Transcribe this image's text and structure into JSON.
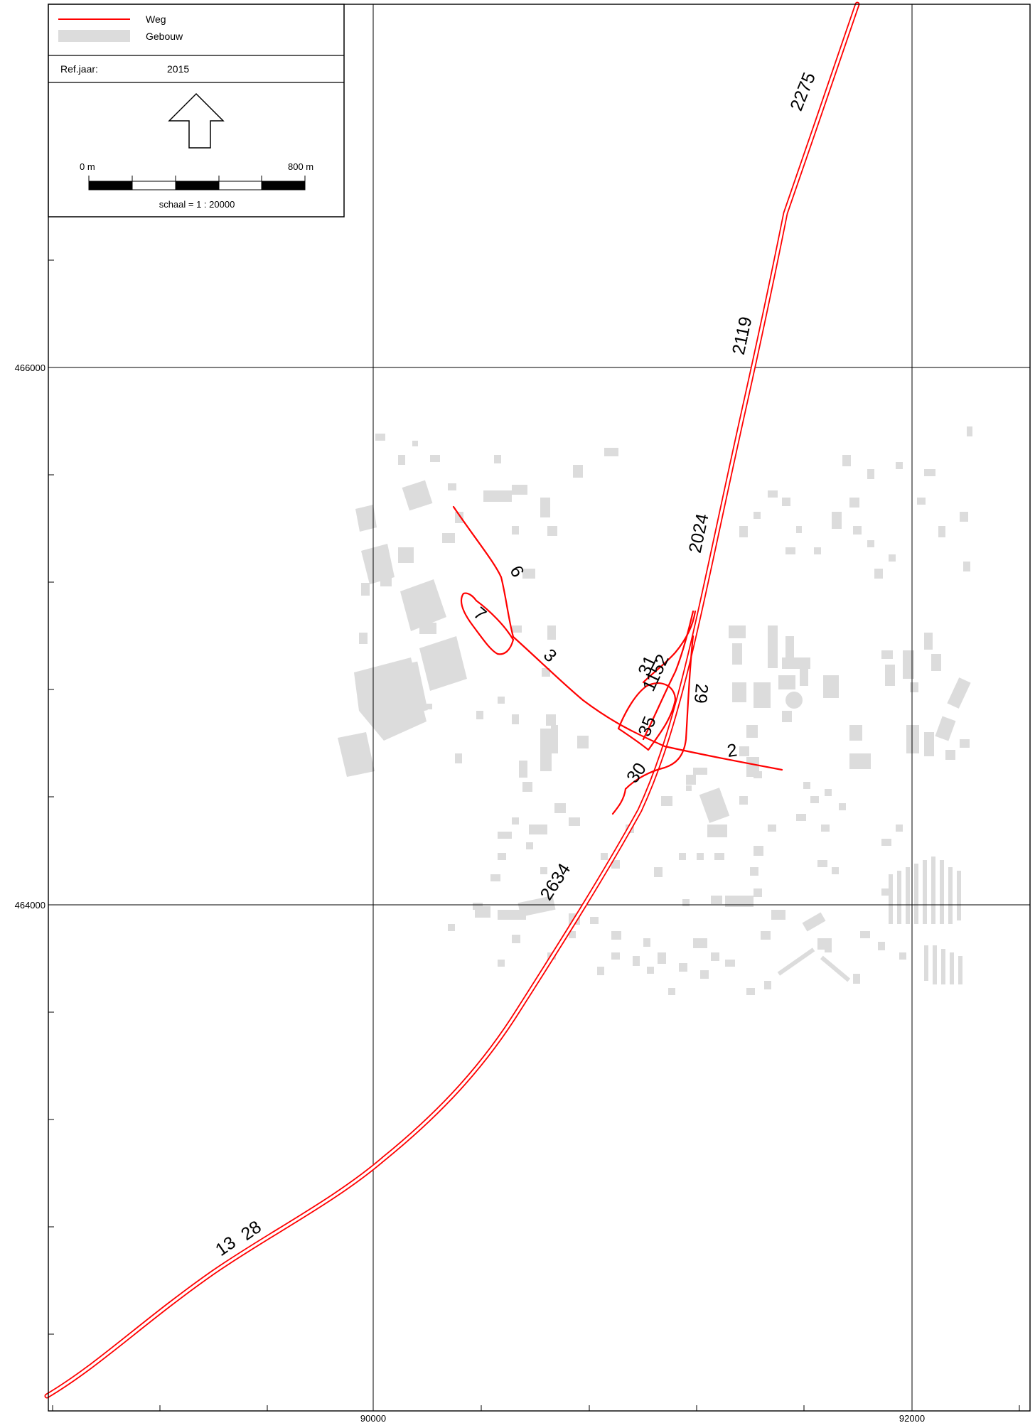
{
  "legend": {
    "items": [
      {
        "label": "Weg",
        "color": "#ff0000"
      },
      {
        "label": "Gebouw",
        "color": "#dcdcdc"
      }
    ],
    "ref_year_label": "Ref.jaar:",
    "ref_year_value": "2015",
    "north_arrow_icon": "north-arrow-icon",
    "scale_start": "0 m",
    "scale_end": "800 m",
    "scale_text": "schaal = 1 : 20000"
  },
  "axes": {
    "y_labels": [
      "466000",
      "464000"
    ],
    "x_labels": [
      "90000",
      "92000"
    ]
  },
  "road_labels": [
    "2275",
    "2119",
    "2024",
    "6",
    "7",
    "3",
    "31",
    "1152",
    "29",
    "35",
    "2",
    "30",
    "2634",
    "13",
    "28"
  ]
}
